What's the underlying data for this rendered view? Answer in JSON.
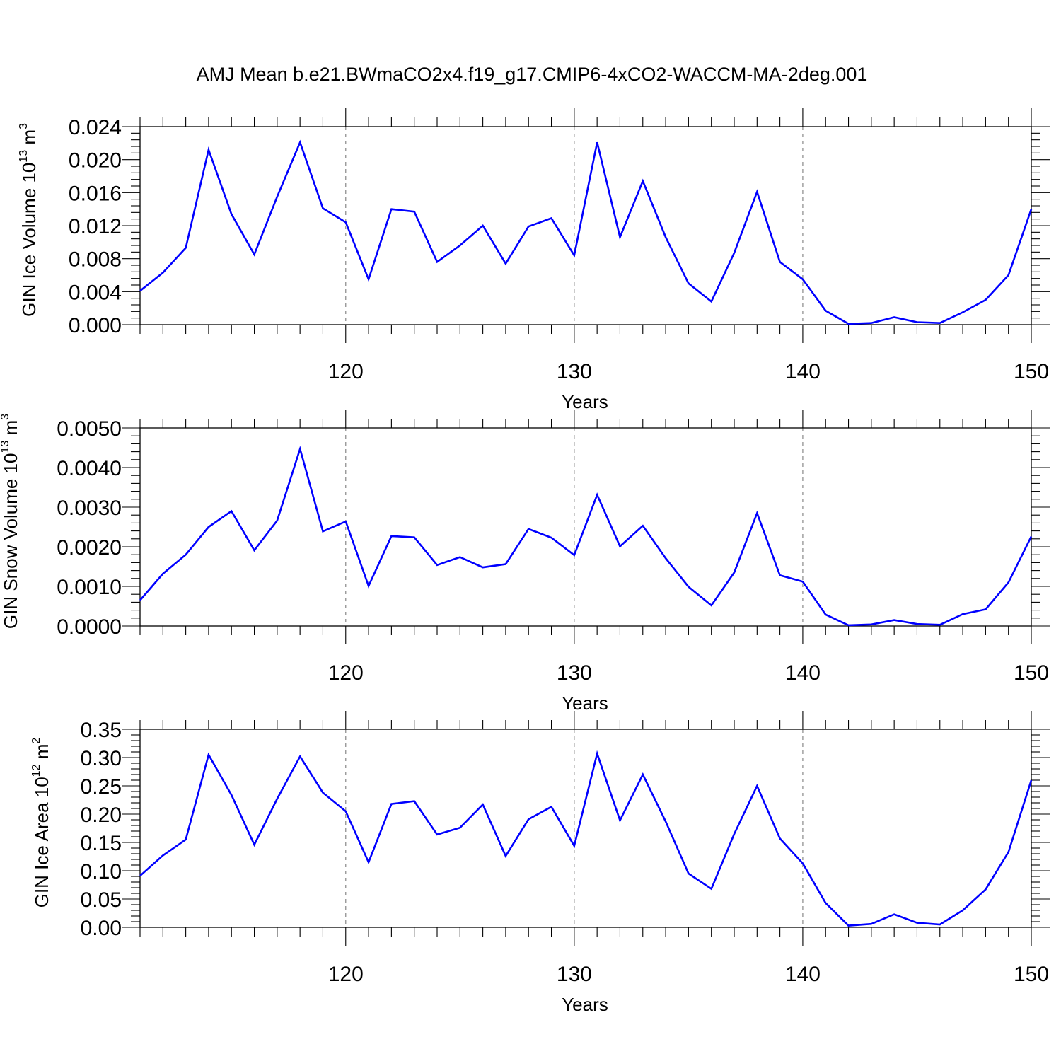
{
  "title": "AMJ Mean b.e21.BWmaCO2x4.f19_g17.CMIP6-4xCO2-WACCM-MA-2deg.001",
  "colors": {
    "line": "#0000ff",
    "grid": "#888888"
  },
  "chart_data": [
    {
      "type": "line",
      "ylabel_main": "GIN Ice Volume 10",
      "ylabel_exp": "13",
      "ylabel_unit": " m",
      "ylabel_unit_exp": "3",
      "xlabel": "Years",
      "xlim": [
        111,
        150
      ],
      "ylim": [
        0,
        0.024
      ],
      "yticks": [
        0.0,
        0.004,
        0.008,
        0.012,
        0.016,
        0.02,
        0.024
      ],
      "yticklabels": [
        "0.000",
        "0.004",
        "0.008",
        "0.012",
        "0.016",
        "0.020",
        "0.024"
      ],
      "xticks": [
        120,
        130,
        140,
        150
      ],
      "xticklabels": [
        "120",
        "130",
        "140",
        "150"
      ],
      "grid_x": [
        120,
        130,
        140
      ],
      "x": [
        111,
        112,
        113,
        114,
        115,
        116,
        117,
        118,
        119,
        120,
        121,
        122,
        123,
        124,
        125,
        126,
        127,
        128,
        129,
        130,
        131,
        132,
        133,
        134,
        135,
        136,
        137,
        138,
        139,
        140,
        141,
        142,
        143,
        144,
        145,
        146,
        147,
        148,
        149,
        150
      ],
      "series": [
        {
          "values": [
            0.0041,
            0.0063,
            0.0093,
            0.0212,
            0.0134,
            0.0085,
            0.0155,
            0.0221,
            0.0141,
            0.0124,
            0.0055,
            0.014,
            0.0137,
            0.0076,
            0.0096,
            0.012,
            0.0074,
            0.0119,
            0.0129,
            0.0084,
            0.0221,
            0.0106,
            0.0174,
            0.0106,
            0.005,
            0.0028,
            0.0087,
            0.0161,
            0.0076,
            0.0055,
            0.0017,
            0.0001,
            0.0002,
            0.0009,
            0.0003,
            0.0002,
            0.0015,
            0.003,
            0.006,
            0.014
          ]
        }
      ]
    },
    {
      "type": "line",
      "ylabel_main": "GIN Snow Volume 10",
      "ylabel_exp": "13",
      "ylabel_unit": " m",
      "ylabel_unit_exp": "3",
      "xlabel": "Years",
      "xlim": [
        111,
        150
      ],
      "ylim": [
        0,
        0.005
      ],
      "yticks": [
        0.0,
        0.001,
        0.002,
        0.003,
        0.004,
        0.005
      ],
      "yticklabels": [
        "0.0000",
        "0.0010",
        "0.0020",
        "0.0030",
        "0.0040",
        "0.0050"
      ],
      "xticks": [
        120,
        130,
        140,
        150
      ],
      "xticklabels": [
        "120",
        "130",
        "140",
        "150"
      ],
      "grid_x": [
        120,
        130,
        140
      ],
      "x": [
        111,
        112,
        113,
        114,
        115,
        116,
        117,
        118,
        119,
        120,
        121,
        122,
        123,
        124,
        125,
        126,
        127,
        128,
        129,
        130,
        131,
        132,
        133,
        134,
        135,
        136,
        137,
        138,
        139,
        140,
        141,
        142,
        143,
        144,
        145,
        146,
        147,
        148,
        149,
        150
      ],
      "series": [
        {
          "values": [
            0.00065,
            0.00132,
            0.0018,
            0.0025,
            0.0029,
            0.00191,
            0.00266,
            0.00447,
            0.00239,
            0.00264,
            0.00101,
            0.00227,
            0.00224,
            0.00154,
            0.00174,
            0.00148,
            0.00156,
            0.00245,
            0.00223,
            0.00179,
            0.00331,
            0.00201,
            0.00253,
            0.00171,
            0.00099,
            0.00052,
            0.00135,
            0.00285,
            0.00128,
            0.00112,
            0.00029,
            2e-05,
            4e-05,
            0.00015,
            5e-05,
            3e-05,
            0.0003,
            0.00042,
            0.0011,
            0.00226
          ]
        }
      ]
    },
    {
      "type": "line",
      "ylabel_main": "GIN Ice Area 10",
      "ylabel_exp": "12",
      "ylabel_unit": " m",
      "ylabel_unit_exp": "2",
      "xlabel": "Years",
      "xlim": [
        111,
        150
      ],
      "ylim": [
        0,
        0.35
      ],
      "yticks": [
        0.0,
        0.05,
        0.1,
        0.15,
        0.2,
        0.25,
        0.3,
        0.35
      ],
      "yticklabels": [
        "0.00",
        "0.05",
        "0.10",
        "0.15",
        "0.20",
        "0.25",
        "0.30",
        "0.35"
      ],
      "xticks": [
        120,
        130,
        140,
        150
      ],
      "xticklabels": [
        "120",
        "130",
        "140",
        "150"
      ],
      "grid_x": [
        120,
        130,
        140
      ],
      "x": [
        111,
        112,
        113,
        114,
        115,
        116,
        117,
        118,
        119,
        120,
        121,
        122,
        123,
        124,
        125,
        126,
        127,
        128,
        129,
        130,
        131,
        132,
        133,
        134,
        135,
        136,
        137,
        138,
        139,
        140,
        141,
        142,
        143,
        144,
        145,
        146,
        147,
        148,
        149,
        150
      ],
      "series": [
        {
          "values": [
            0.091,
            0.127,
            0.155,
            0.305,
            0.234,
            0.146,
            0.227,
            0.302,
            0.238,
            0.205,
            0.115,
            0.218,
            0.223,
            0.164,
            0.176,
            0.217,
            0.126,
            0.191,
            0.213,
            0.144,
            0.307,
            0.189,
            0.27,
            0.187,
            0.095,
            0.068,
            0.165,
            0.25,
            0.157,
            0.113,
            0.043,
            0.003,
            0.006,
            0.023,
            0.008,
            0.005,
            0.03,
            0.067,
            0.133,
            0.26
          ]
        }
      ]
    }
  ]
}
